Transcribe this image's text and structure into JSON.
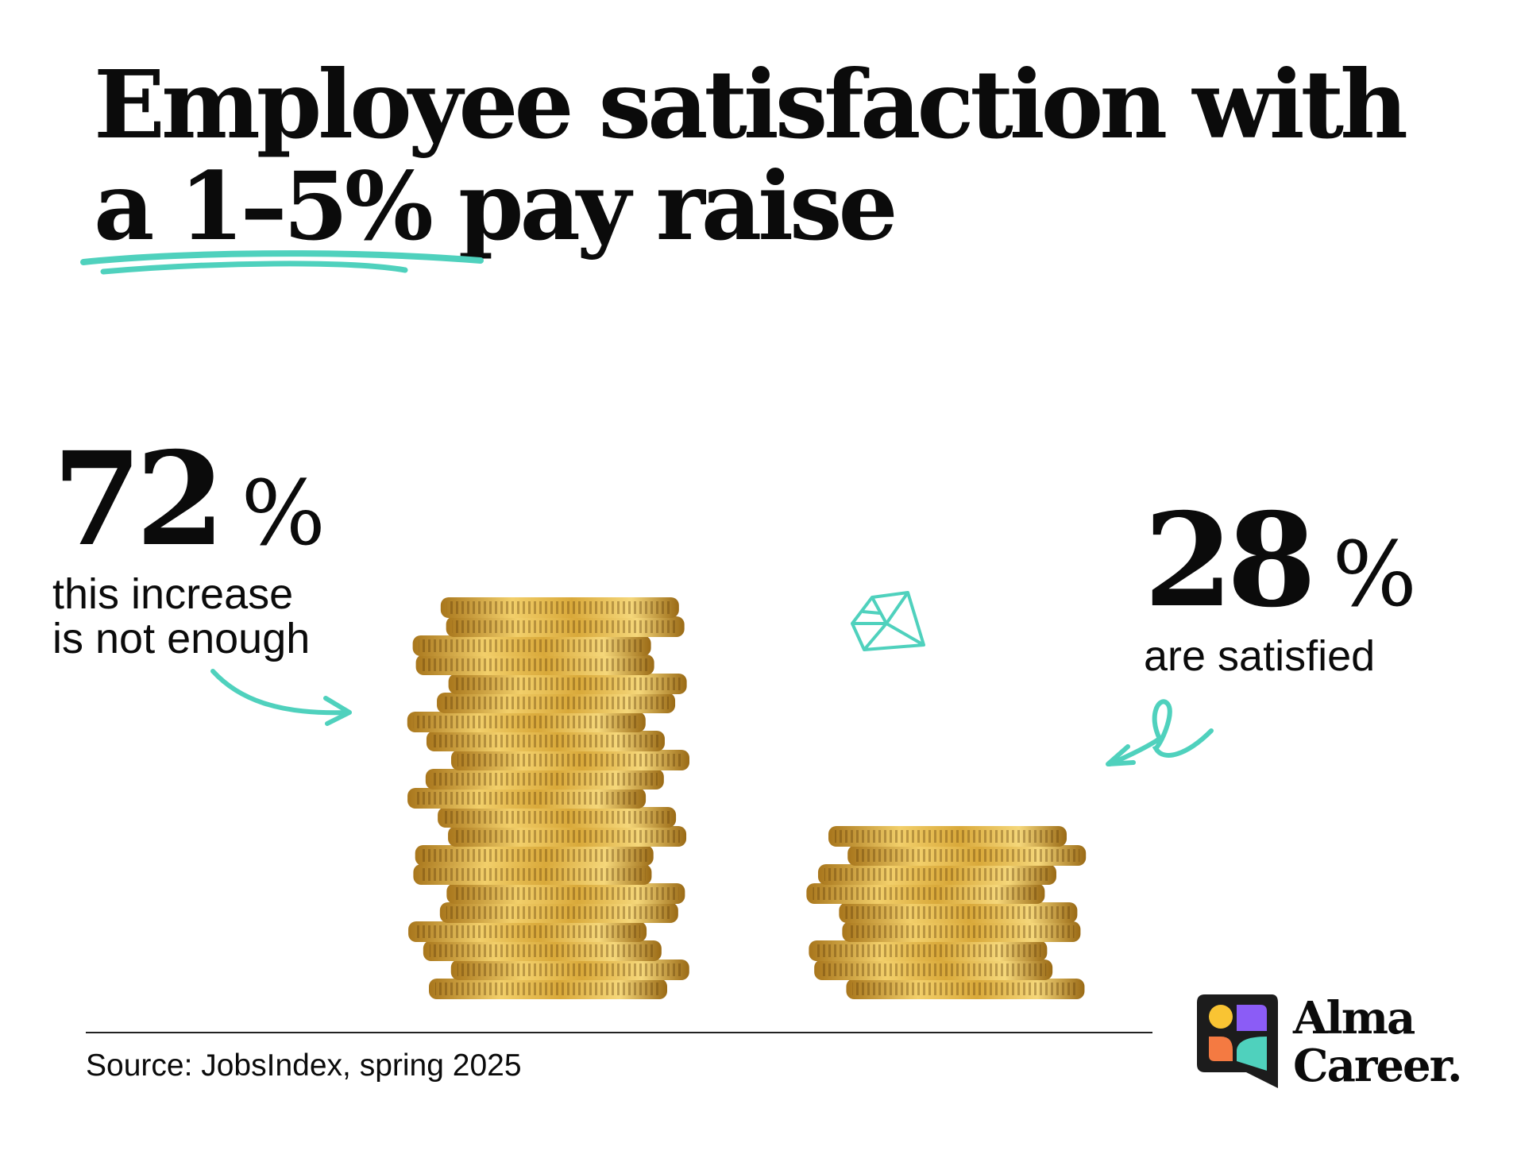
{
  "title": {
    "line1": "Employee satisfaction with",
    "line2": "a 1–5% pay raise"
  },
  "stats": [
    {
      "value": "72",
      "unit": "%",
      "caption_line1": "this increase",
      "caption_line2": "is not enough",
      "coin_stack_share": 72
    },
    {
      "value": "28",
      "unit": "%",
      "caption_line1": "are satisfied",
      "coin_stack_share": 28
    }
  ],
  "source": "Source: JobsIndex, spring 2025",
  "brand": {
    "line1": "Alma",
    "line2": "Career."
  },
  "colors": {
    "accent": "#4fd1bd",
    "text": "#0b0b0b",
    "gold": "#d9a93a",
    "logo_dark": "#1c1c1c",
    "logo_yellow": "#f9c433",
    "logo_purple": "#8b5cf6",
    "logo_orange": "#f47a42",
    "logo_teal": "#4fd1bd"
  },
  "icons": [
    "diamond-icon",
    "curved-arrow-icon",
    "loop-arrow-icon",
    "coin-stack-image",
    "alma-career-logo"
  ]
}
